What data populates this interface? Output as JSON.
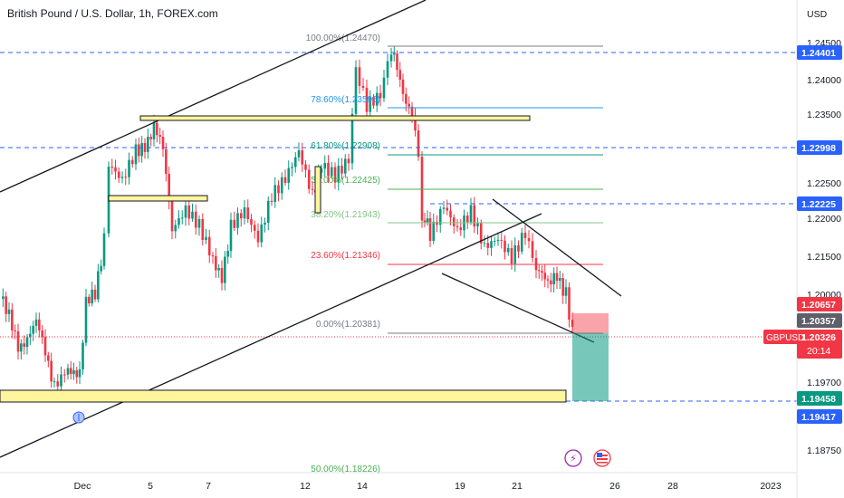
{
  "header": {
    "title": "British Pound / U.S. Dollar, 1h, FOREX.com",
    "currency": "USD"
  },
  "axis": {
    "y_ticks": [
      "1.24000",
      "1.23500",
      "1.22500",
      "1.22000",
      "1.21500",
      "1.19700",
      "1.18750"
    ],
    "y_ticks_partial": [
      "1.24500",
      "1.20000"
    ],
    "x_ticks": [
      "Dec",
      "5",
      "7",
      "12",
      "14",
      "19",
      "21",
      "26",
      "28",
      "2023"
    ]
  },
  "price_badges": {
    "level_1": "1.24401",
    "level_2": "1.22998",
    "level_3": "1.22225",
    "stop": "1.20657",
    "entry": "1.20357",
    "current": "1.20326",
    "countdown": "20:14",
    "symbol": "GBPUSD",
    "target_1": "1.19458",
    "target_2": "1.19417"
  },
  "fibonacci": [
    {
      "label": "100.00%(1.24470)",
      "color": "#787b86"
    },
    {
      "label": "78.60%(1.23595)",
      "color": "#2196f3"
    },
    {
      "label": "61.80%(1.22908)",
      "color": "#089981"
    },
    {
      "label": "50.00%(1.22425)",
      "color": "#4caf50"
    },
    {
      "label": "38.20%(1.21943)",
      "color": "#81c784"
    },
    {
      "label": "23.60%(1.21346)",
      "color": "#f23645"
    },
    {
      "label": "0.00%(1.20381)",
      "color": "#787b86"
    },
    {
      "label": "50.00%(1.18226)",
      "color": "#4caf50"
    }
  ],
  "colors": {
    "up": "#089981",
    "down": "#f23645",
    "blue_level": "#2962ff",
    "zone_fill": "#fff59d"
  }
}
